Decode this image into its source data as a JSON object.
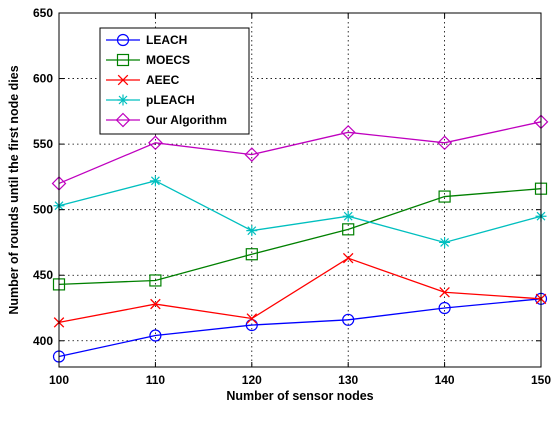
{
  "chart_data": {
    "type": "line",
    "title": "",
    "xlabel": "Number of sensor nodes",
    "ylabel": "Number of rounds until the first node dies",
    "x": [
      100,
      110,
      120,
      130,
      140,
      150
    ],
    "xlim": [
      100,
      150
    ],
    "ylim": [
      380,
      650
    ],
    "xticks": [
      100,
      110,
      120,
      130,
      140,
      150
    ],
    "yticks": [
      400,
      450,
      500,
      550,
      600,
      650
    ],
    "grid": true,
    "grid_style": "dotted",
    "legend_position": "top-left",
    "series": [
      {
        "name": "LEACH",
        "color": "#0000ff",
        "marker": "circle",
        "values": [
          388,
          404,
          412,
          416,
          425,
          432
        ]
      },
      {
        "name": "MOECS",
        "color": "#008000",
        "marker": "square",
        "values": [
          443,
          446,
          466,
          485,
          510,
          516
        ]
      },
      {
        "name": "AEEC",
        "color": "#ff0000",
        "marker": "x",
        "values": [
          414,
          428,
          417,
          463,
          437,
          432
        ]
      },
      {
        "name": "pLEACH",
        "color": "#00bfbf",
        "marker": "asterisk",
        "values": [
          503,
          522,
          484,
          495,
          475,
          495
        ]
      },
      {
        "name": "Our Algorithm",
        "color": "#bf00bf",
        "marker": "diamond",
        "values": [
          520,
          551,
          542,
          559,
          551,
          567
        ]
      }
    ]
  }
}
